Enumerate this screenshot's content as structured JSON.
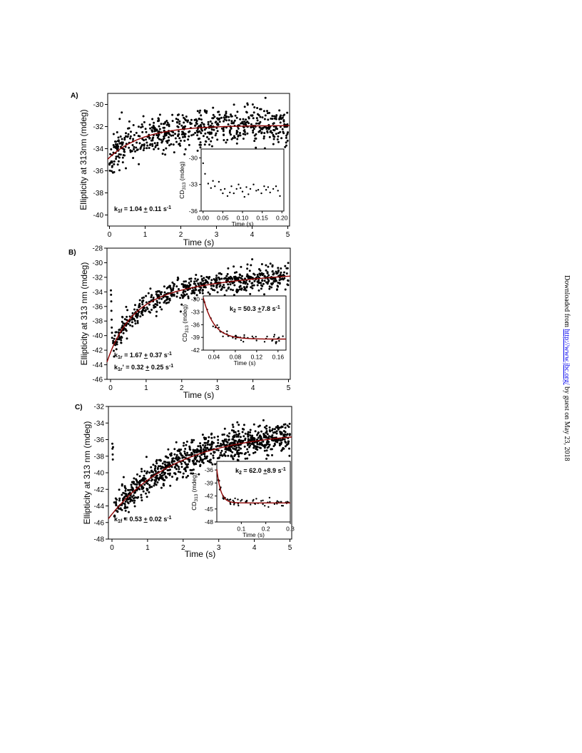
{
  "sidebar": {
    "prefix": "Downloaded from ",
    "link": "http://www.jbc.org/",
    "suffix": " by guest on May 23, 2018"
  },
  "colors": {
    "points": "#000000",
    "fit": "#8b0000"
  },
  "chart_data": [
    {
      "type": "scatter",
      "panel": "A)",
      "xlabel": "Time (s)",
      "ylabel": "Ellipticity at 313nm (mdeg)",
      "xlim": [
        -0.05,
        5.05
      ],
      "ylim": [
        -41,
        -29
      ],
      "xticks": [
        0,
        1,
        2,
        3,
        4,
        5
      ],
      "yticks": [
        -40,
        -38,
        -36,
        -34,
        -32,
        -30
      ],
      "rate_labels": [
        {
          "text": "k1f = 1.04 ± 0.11 s-1",
          "sym": "k",
          "sub": "1f",
          "rest": " = 1.04 ",
          "pm": "+",
          "val": " 0.11 s",
          "sup": "-1"
        }
      ],
      "fit": {
        "model": "single-exponential",
        "y0": -34.8,
        "yinf": -31.9,
        "k": 1.04
      },
      "points": {
        "n": 650,
        "x_range": [
          0,
          5
        ],
        "noise_sd": 0.9,
        "seed": 11
      },
      "inset": {
        "xlabel": "Time (s)",
        "ylabel": "CD313 (mdeg)",
        "ylabel_main": "CD",
        "ylabel_sub": "313",
        "ylabel_unit": " (mdeg)",
        "xlim": [
          -0.005,
          0.205
        ],
        "ylim": [
          -36,
          -29
        ],
        "xticks": [
          "0.00",
          "0.05",
          "0.10",
          "0.15",
          "0.20"
        ],
        "xtick_values": [
          0,
          0.05,
          0.1,
          0.15,
          0.2
        ],
        "yticks": [
          -36,
          -33,
          -30
        ],
        "rate_labels": [],
        "fit": null,
        "points": [
          {
            "x": 0.0,
            "y": -30.6
          },
          {
            "x": 0.005,
            "y": -31.8
          },
          {
            "x": 0.013,
            "y": -32.9
          },
          {
            "x": 0.02,
            "y": -33.4
          },
          {
            "x": 0.025,
            "y": -32.6
          },
          {
            "x": 0.03,
            "y": -33.2
          },
          {
            "x": 0.04,
            "y": -32.7
          },
          {
            "x": 0.045,
            "y": -33.6
          },
          {
            "x": 0.05,
            "y": -34.0
          },
          {
            "x": 0.055,
            "y": -33.5
          },
          {
            "x": 0.062,
            "y": -34.3
          },
          {
            "x": 0.068,
            "y": -33.9
          },
          {
            "x": 0.072,
            "y": -33.2
          },
          {
            "x": 0.078,
            "y": -34.0
          },
          {
            "x": 0.085,
            "y": -33.5
          },
          {
            "x": 0.09,
            "y": -33.0
          },
          {
            "x": 0.095,
            "y": -33.4
          },
          {
            "x": 0.1,
            "y": -33.8
          },
          {
            "x": 0.105,
            "y": -34.4
          },
          {
            "x": 0.11,
            "y": -33.3
          },
          {
            "x": 0.115,
            "y": -34.1
          },
          {
            "x": 0.12,
            "y": -33.5
          },
          {
            "x": 0.128,
            "y": -33.0
          },
          {
            "x": 0.135,
            "y": -33.7
          },
          {
            "x": 0.14,
            "y": -33.6
          },
          {
            "x": 0.148,
            "y": -34.0
          },
          {
            "x": 0.155,
            "y": -33.2
          },
          {
            "x": 0.16,
            "y": -33.6
          },
          {
            "x": 0.165,
            "y": -33.3
          },
          {
            "x": 0.17,
            "y": -33.9
          },
          {
            "x": 0.178,
            "y": -33.5
          },
          {
            "x": 0.185,
            "y": -33.2
          },
          {
            "x": 0.19,
            "y": -33.7
          },
          {
            "x": 0.195,
            "y": -34.3
          }
        ]
      }
    },
    {
      "type": "scatter",
      "panel": "B)",
      "xlabel": "Time (s)",
      "ylabel": "Ellipticity at 313 nm (mdeg)",
      "xlim": [
        -0.1,
        5.05
      ],
      "ylim": [
        -46,
        -28
      ],
      "xticks": [
        0,
        1,
        2,
        3,
        4,
        5
      ],
      "yticks": [
        -46,
        -44,
        -42,
        -40,
        -38,
        -36,
        -34,
        -32,
        -30,
        -28
      ],
      "rate_labels": [
        {
          "text": "k1r = 1.67 ± 0.37 s-1",
          "sym": "k",
          "sub": "1r",
          "rest": " = 1.67 ",
          "pm": "+",
          "val": " 0.37 s",
          "sup": "-1"
        },
        {
          "text": "k1r' = 0.32 ± 0.25 s-1",
          "sym": "k",
          "sub": "1r",
          "rest": "' = 0.32 ",
          "pm": "+",
          "val": " 0.25 s",
          "sup": "-1"
        }
      ],
      "fit": {
        "model": "double-exponential",
        "y0": -42.3,
        "yinf": -30.8,
        "k": 1.67,
        "a2": 0.45,
        "k2": 0.32
      },
      "early_points": [
        {
          "x": 0.01,
          "y": -33.8
        },
        {
          "x": 0.015,
          "y": -34.4
        },
        {
          "x": 0.02,
          "y": -35.3
        },
        {
          "x": 0.025,
          "y": -36.6
        },
        {
          "x": 0.03,
          "y": -37.8
        },
        {
          "x": 0.035,
          "y": -38.9
        },
        {
          "x": 0.04,
          "y": -39.6
        },
        {
          "x": 0.045,
          "y": -40.3
        }
      ],
      "points": {
        "n": 620,
        "x_range": [
          0.05,
          5
        ],
        "noise_sd": 0.8,
        "seed": 23
      },
      "inset": {
        "xlabel": "Time (s)",
        "ylabel": "CD313 (mdeg)",
        "ylabel_main": "CD",
        "ylabel_sub": "313",
        "ylabel_unit": " (mdeg)",
        "xlim": [
          0.02,
          0.175
        ],
        "ylim": [
          -42,
          -29.2
        ],
        "xticks": [
          "0.04",
          "0.08",
          "0.12",
          "0.16"
        ],
        "xtick_values": [
          0.04,
          0.08,
          0.12,
          0.16
        ],
        "yticks": [
          -42,
          -39,
          -36,
          -33,
          -30
        ],
        "rate_labels": [
          {
            "text": "k2 = 50.3 ± 7.8 s-1",
            "sym": "k",
            "sub": "2",
            "rest": " = 50.3 ",
            "pm": "+",
            "val": "7.8 s",
            "sup": "-1"
          }
        ],
        "fit": {
          "model": "single-exponential",
          "t0": 0.02,
          "y0": -29.6,
          "yinf": -39.4,
          "k": 50.3
        },
        "points": {
          "n": 46,
          "x_range": [
            0.022,
            0.172
          ],
          "noise_sd": 0.45,
          "seed": 5
        }
      }
    },
    {
      "type": "scatter",
      "panel": "C)",
      "xlabel": "Time (s)",
      "ylabel": "Ellipticity at 313 nm (mdeg)",
      "xlim": [
        -0.1,
        5.05
      ],
      "ylim": [
        -48,
        -32
      ],
      "xticks": [
        0,
        1,
        2,
        3,
        4,
        5
      ],
      "yticks": [
        -48,
        -46,
        -44,
        -42,
        -40,
        -38,
        -36,
        -34,
        -32
      ],
      "rate_labels": [
        {
          "text": "k1f = 0.53 ± 0.02 s-1",
          "sym": "k",
          "sub": "1f",
          "rest": " = 0.53 ",
          "pm": "+",
          "val": " 0.02 s",
          "sup": "-1"
        }
      ],
      "fit": {
        "model": "single-exponential",
        "y0": -45.0,
        "yinf": -35.0,
        "k": 0.53
      },
      "early_points": [
        {
          "x": 0.01,
          "y": -36.5
        },
        {
          "x": 0.015,
          "y": -37.1
        },
        {
          "x": 0.02,
          "y": -37.8
        },
        {
          "x": 0.025,
          "y": -38.4
        },
        {
          "x": 0.03,
          "y": -36.9
        }
      ],
      "points": {
        "n": 900,
        "x_range": [
          0.05,
          5
        ],
        "noise_sd": 0.95,
        "seed": 37
      },
      "inset": {
        "xlabel": "Time (s)",
        "ylabel": "CD313 (mdeg)",
        "ylabel_main": "CD",
        "ylabel_sub": "313",
        "ylabel_unit": " (mdeg)",
        "xlim": [
          0.0,
          0.3
        ],
        "ylim": [
          -48,
          -34
        ],
        "xticks": [
          "0.1",
          "0.2",
          "0.3"
        ],
        "xtick_values": [
          0.1,
          0.2,
          0.3
        ],
        "yticks": [
          -48,
          -45,
          -42,
          -39,
          -36
        ],
        "rate_labels": [
          {
            "text": "k2 = 62.0 ± 8.9 s-1",
            "sym": "k",
            "sub": "2",
            "rest": " = 62.0 ",
            "pm": "+",
            "val": "8.9 s",
            "sup": "-1"
          }
        ],
        "fit": {
          "model": "single-exponential",
          "t0": 0.0,
          "y0": -35.8,
          "yinf": -43.6,
          "k": 62.0
        },
        "points": {
          "n": 60,
          "x_range": [
            0.005,
            0.295
          ],
          "noise_sd": 0.45,
          "seed": 9
        }
      }
    }
  ]
}
